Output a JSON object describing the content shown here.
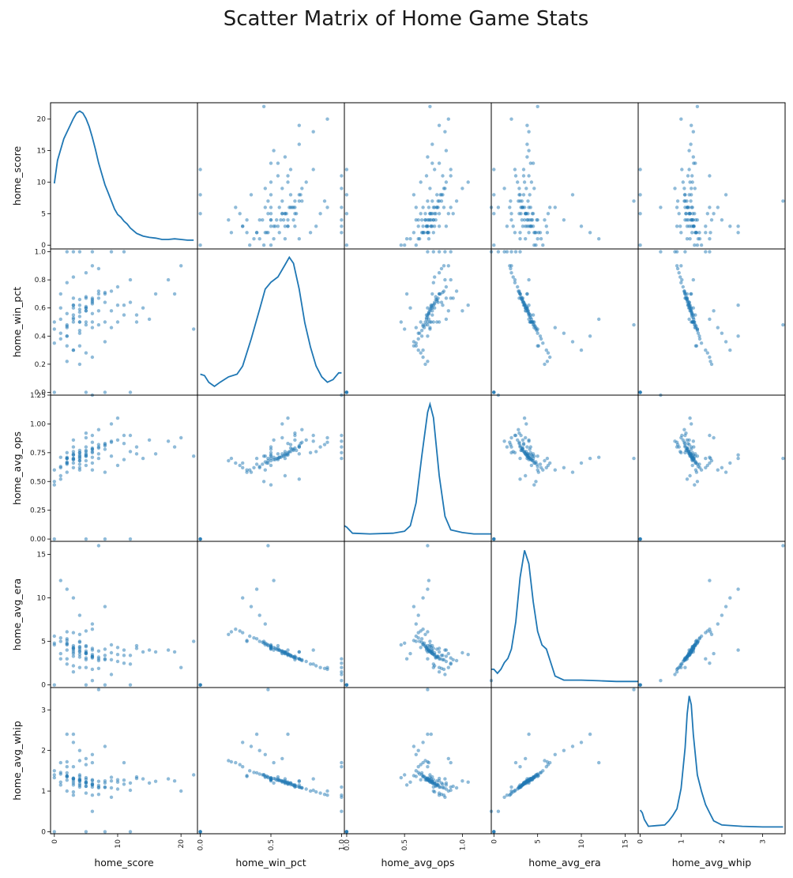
{
  "chart_data": {
    "type": "scatter",
    "title": "Scatter Matrix of Home Game Stats",
    "variables": [
      "home_score",
      "home_win_pct",
      "home_avg_ops",
      "home_avg_era",
      "home_avg_whip"
    ],
    "diagonal": "kde",
    "color": "#1f77b4",
    "point_alpha": 0.5,
    "grid": false,
    "axes": {
      "home_score": {
        "range": [
          -0.6,
          22.6
        ],
        "ticks": [
          0,
          5,
          10,
          15,
          20
        ],
        "x_ticks": [
          0,
          10,
          20
        ],
        "x_tick_labels": [
          "0",
          "10",
          "20"
        ]
      },
      "home_win_pct": {
        "range": [
          -0.02,
          1.02
        ],
        "ticks": [
          0.0,
          0.2,
          0.4,
          0.6,
          0.8,
          1.0
        ],
        "x_ticks": [
          0.0,
          0.5,
          1.0
        ],
        "x_tick_labels": [
          "0.0",
          "0.5",
          "1.0"
        ],
        "y_tick_labels": [
          "0.0",
          "0.2",
          "0.4",
          "0.6",
          "0.8",
          "1.0"
        ]
      },
      "home_avg_ops": {
        "range": [
          -0.02,
          1.25
        ],
        "ticks": [
          0.0,
          0.25,
          0.5,
          0.75,
          1.0,
          1.25
        ],
        "x_ticks": [
          0.0,
          0.5,
          1.0
        ],
        "x_tick_labels": [
          "0.0",
          "0.5",
          "1.0"
        ],
        "y_tick_labels": [
          "0.00",
          "0.25",
          "0.50",
          "0.75",
          "1.00",
          "1.25"
        ]
      },
      "home_avg_era": {
        "range": [
          -0.3,
          16.5
        ],
        "ticks": [
          0,
          5,
          10,
          15
        ],
        "x_ticks": [
          0,
          5,
          10,
          15
        ],
        "x_tick_labels": [
          "0",
          "5",
          "10",
          "15"
        ]
      },
      "home_avg_whip": {
        "range": [
          -0.05,
          3.55
        ],
        "ticks": [
          0,
          1,
          2,
          3
        ],
        "x_ticks": [
          0,
          1,
          2,
          3
        ],
        "x_tick_labels": [
          "0",
          "1",
          "2",
          "3"
        ]
      }
    },
    "kde_curves": {
      "home_score": [
        [
          0,
          0.45
        ],
        [
          0.5,
          0.62
        ],
        [
          1,
          0.7
        ],
        [
          1.5,
          0.78
        ],
        [
          2,
          0.83
        ],
        [
          2.5,
          0.88
        ],
        [
          3,
          0.93
        ],
        [
          3.5,
          0.97
        ],
        [
          4,
          0.985
        ],
        [
          4.5,
          0.97
        ],
        [
          5,
          0.93
        ],
        [
          5.5,
          0.87
        ],
        [
          6,
          0.79
        ],
        [
          6.5,
          0.7
        ],
        [
          7,
          0.6
        ],
        [
          7.5,
          0.52
        ],
        [
          8,
          0.44
        ],
        [
          8.5,
          0.38
        ],
        [
          9,
          0.32
        ],
        [
          9.5,
          0.26
        ],
        [
          10,
          0.22
        ],
        [
          10.5,
          0.2
        ],
        [
          11,
          0.17
        ],
        [
          11.5,
          0.15
        ],
        [
          12,
          0.12
        ],
        [
          12.5,
          0.1
        ],
        [
          13,
          0.08
        ],
        [
          13.5,
          0.07
        ],
        [
          14,
          0.06
        ],
        [
          15,
          0.05
        ],
        [
          16,
          0.045
        ],
        [
          17,
          0.035
        ],
        [
          18,
          0.035
        ],
        [
          19,
          0.04
        ],
        [
          20,
          0.035
        ],
        [
          21,
          0.03
        ],
        [
          22,
          0.03
        ]
      ],
      "home_win_pct": [
        [
          0,
          0.12
        ],
        [
          0.03,
          0.11
        ],
        [
          0.06,
          0.06
        ],
        [
          0.1,
          0.03
        ],
        [
          0.14,
          0.06
        ],
        [
          0.2,
          0.1
        ],
        [
          0.26,
          0.12
        ],
        [
          0.3,
          0.18
        ],
        [
          0.36,
          0.38
        ],
        [
          0.42,
          0.6
        ],
        [
          0.46,
          0.75
        ],
        [
          0.5,
          0.8
        ],
        [
          0.55,
          0.84
        ],
        [
          0.6,
          0.93
        ],
        [
          0.63,
          0.985
        ],
        [
          0.66,
          0.94
        ],
        [
          0.7,
          0.75
        ],
        [
          0.74,
          0.5
        ],
        [
          0.78,
          0.32
        ],
        [
          0.82,
          0.18
        ],
        [
          0.86,
          0.1
        ],
        [
          0.9,
          0.06
        ],
        [
          0.94,
          0.08
        ],
        [
          0.98,
          0.13
        ],
        [
          1.0,
          0.13
        ]
      ],
      "home_avg_ops": [
        [
          -0.02,
          0.08
        ],
        [
          0.0,
          0.07
        ],
        [
          0.05,
          0.025
        ],
        [
          0.2,
          0.02
        ],
        [
          0.4,
          0.025
        ],
        [
          0.5,
          0.04
        ],
        [
          0.55,
          0.08
        ],
        [
          0.6,
          0.25
        ],
        [
          0.65,
          0.6
        ],
        [
          0.7,
          0.92
        ],
        [
          0.72,
          0.98
        ],
        [
          0.75,
          0.88
        ],
        [
          0.8,
          0.45
        ],
        [
          0.85,
          0.15
        ],
        [
          0.9,
          0.05
        ],
        [
          1.0,
          0.03
        ],
        [
          1.1,
          0.02
        ],
        [
          1.25,
          0.02
        ]
      ],
      "home_avg_era": [
        [
          -0.3,
          0.1
        ],
        [
          0,
          0.1
        ],
        [
          0.4,
          0.07
        ],
        [
          0.8,
          0.1
        ],
        [
          1.2,
          0.15
        ],
        [
          1.6,
          0.18
        ],
        [
          2,
          0.25
        ],
        [
          2.5,
          0.45
        ],
        [
          3,
          0.78
        ],
        [
          3.5,
          0.98
        ],
        [
          4,
          0.88
        ],
        [
          4.5,
          0.6
        ],
        [
          5,
          0.38
        ],
        [
          5.5,
          0.28
        ],
        [
          6,
          0.25
        ],
        [
          6.5,
          0.15
        ],
        [
          7,
          0.05
        ],
        [
          8,
          0.02
        ],
        [
          10,
          0.02
        ],
        [
          12,
          0.015
        ],
        [
          14,
          0.01
        ],
        [
          16.5,
          0.01
        ]
      ],
      "home_avg_whip": [
        [
          0,
          0.14
        ],
        [
          0.05,
          0.12
        ],
        [
          0.1,
          0.07
        ],
        [
          0.2,
          0.02
        ],
        [
          0.4,
          0.025
        ],
        [
          0.6,
          0.03
        ],
        [
          0.7,
          0.06
        ],
        [
          0.8,
          0.1
        ],
        [
          0.9,
          0.15
        ],
        [
          1.0,
          0.3
        ],
        [
          1.1,
          0.6
        ],
        [
          1.15,
          0.85
        ],
        [
          1.2,
          0.985
        ],
        [
          1.25,
          0.92
        ],
        [
          1.3,
          0.7
        ],
        [
          1.4,
          0.4
        ],
        [
          1.5,
          0.28
        ],
        [
          1.6,
          0.18
        ],
        [
          1.7,
          0.12
        ],
        [
          1.8,
          0.06
        ],
        [
          2.0,
          0.03
        ],
        [
          2.5,
          0.02
        ],
        [
          3.0,
          0.015
        ],
        [
          3.5,
          0.015
        ]
      ]
    },
    "observations": [
      [
        5,
        0.58,
        0.72,
        3.9,
        1.22
      ],
      [
        3,
        0.55,
        0.7,
        4.2,
        1.3
      ],
      [
        4,
        0.62,
        0.75,
        3.5,
        1.18
      ],
      [
        6,
        0.66,
        0.78,
        3.2,
        1.15
      ],
      [
        2,
        0.48,
        0.66,
        4.6,
        1.35
      ],
      [
        7,
        0.7,
        0.8,
        3.0,
        1.1
      ],
      [
        1,
        0.42,
        0.63,
        5.0,
        1.42
      ],
      [
        8,
        0.64,
        0.82,
        3.4,
        1.2
      ],
      [
        4,
        0.5,
        0.68,
        4.4,
        1.28
      ],
      [
        3,
        0.6,
        0.73,
        3.8,
        1.25
      ],
      [
        5,
        0.68,
        0.77,
        3.1,
        1.12
      ],
      [
        2,
        0.4,
        0.65,
        5.3,
        1.45
      ],
      [
        9,
        0.72,
        0.84,
        2.9,
        1.08
      ],
      [
        6,
        0.56,
        0.71,
        4.0,
        1.26
      ],
      [
        0,
        0.35,
        0.6,
        5.6,
        1.5
      ],
      [
        4,
        0.54,
        0.7,
        4.1,
        1.27
      ],
      [
        3,
        0.62,
        0.74,
        3.6,
        1.2
      ],
      [
        5,
        0.6,
        0.76,
        3.7,
        1.19
      ],
      [
        10,
        0.75,
        0.86,
        2.7,
        1.05
      ],
      [
        2,
        0.46,
        0.67,
        4.8,
        1.36
      ],
      [
        6,
        0.64,
        0.79,
        3.3,
        1.16
      ],
      [
        1,
        0.38,
        0.62,
        5.4,
        1.46
      ],
      [
        7,
        0.58,
        0.74,
        3.9,
        1.24
      ],
      [
        3,
        0.52,
        0.69,
        4.3,
        1.31
      ],
      [
        4,
        0.66,
        0.77,
        3.2,
        1.14
      ],
      [
        5,
        0.48,
        0.68,
        4.5,
        1.33
      ],
      [
        8,
        0.7,
        0.81,
        3.0,
        1.1
      ],
      [
        2,
        0.56,
        0.71,
        4.0,
        1.27
      ],
      [
        11,
        0.62,
        0.83,
        3.4,
        1.17
      ],
      [
        4,
        0.44,
        0.65,
        4.9,
        1.4
      ],
      [
        3,
        0.3,
        0.62,
        6.0,
        1.6
      ],
      [
        5,
        0.28,
        0.64,
        6.2,
        1.65
      ],
      [
        6,
        0.25,
        0.66,
        6.4,
        1.7
      ],
      [
        2,
        0.22,
        0.7,
        6.1,
        1.72
      ],
      [
        4,
        0.2,
        0.68,
        5.8,
        1.75
      ],
      [
        3,
        0.82,
        0.76,
        2.2,
        0.98
      ],
      [
        5,
        0.85,
        0.8,
        2.0,
        0.95
      ],
      [
        7,
        0.88,
        0.82,
        1.9,
        0.92
      ],
      [
        2,
        0.78,
        0.75,
        2.4,
        1.0
      ],
      [
        6,
        0.9,
        0.84,
        1.8,
        0.9
      ],
      [
        4,
        0.5,
        0.73,
        4.3,
        1.3
      ],
      [
        5,
        0.5,
        0.72,
        4.4,
        1.29
      ],
      [
        6,
        0.5,
        0.75,
        4.2,
        1.28
      ],
      [
        3,
        0.5,
        0.7,
        4.5,
        1.32
      ],
      [
        8,
        0.5,
        0.78,
        4.1,
        1.25
      ],
      [
        2,
        0.33,
        0.58,
        5.1,
        1.38
      ],
      [
        4,
        0.33,
        0.6,
        5.0,
        1.36
      ],
      [
        6,
        0.67,
        0.9,
        3.1,
        1.1
      ],
      [
        5,
        0.67,
        0.92,
        2.9,
        1.12
      ],
      [
        3,
        0.67,
        0.86,
        3.3,
        1.15
      ],
      [
        12,
        0.8,
        0.9,
        2.4,
        1.02
      ],
      [
        13,
        0.55,
        0.74,
        4.5,
        1.35
      ],
      [
        14,
        0.6,
        0.7,
        3.8,
        1.3
      ],
      [
        15,
        0.52,
        0.86,
        4.0,
        1.2
      ],
      [
        1,
        0.6,
        0.55,
        3.6,
        1.22
      ],
      [
        0,
        0.45,
        0.5,
        4.8,
        1.4
      ],
      [
        0,
        0.5,
        0.47,
        4.6,
        1.33
      ],
      [
        1,
        0.7,
        0.52,
        3.0,
        1.15
      ],
      [
        9,
        0.58,
        1.0,
        3.7,
        1.25
      ],
      [
        10,
        0.62,
        1.05,
        3.5,
        1.22
      ],
      [
        7,
        0.72,
        0.95,
        2.8,
        1.08
      ],
      [
        6,
        0.46,
        0.6,
        7.0,
        1.9
      ],
      [
        4,
        0.42,
        0.62,
        8.0,
        2.0
      ],
      [
        8,
        0.36,
        0.58,
        9.0,
        2.1
      ],
      [
        3,
        0.3,
        0.66,
        10.0,
        2.2
      ],
      [
        2,
        0.4,
        0.7,
        11.0,
        2.4
      ],
      [
        18,
        0.8,
        0.85,
        4.0,
        1.3
      ],
      [
        19,
        0.7,
        0.8,
        3.8,
        1.25
      ],
      [
        20,
        0.9,
        0.88,
        2.0,
        1.0
      ],
      [
        22,
        0.45,
        0.72,
        5.0,
        1.4
      ],
      [
        12,
        0.0,
        0.0,
        0.0,
        0.0
      ],
      [
        5,
        0.0,
        0.0,
        0.0,
        0.0
      ],
      [
        0,
        0.0,
        0.0,
        0.0,
        0.0
      ],
      [
        8,
        0.0,
        0.0,
        0.0,
        0.0
      ],
      [
        3,
        1.0,
        0.8,
        1.5,
        0.9
      ],
      [
        9,
        1.0,
        0.85,
        1.2,
        0.85
      ],
      [
        4,
        1.0,
        0.75,
        2.0,
        1.1
      ],
      [
        6,
        1.0,
        1.25,
        0.5,
        0.5
      ],
      [
        2,
        1.0,
        0.7,
        3.0,
        1.6
      ],
      [
        11,
        1.0,
        0.9,
        2.5,
        1.7
      ],
      [
        5,
        0.6,
        0.74,
        3.6,
        1.21
      ],
      [
        4,
        0.57,
        0.71,
        3.9,
        1.26
      ],
      [
        6,
        0.63,
        0.76,
        3.5,
        1.19
      ],
      [
        3,
        0.53,
        0.69,
        4.2,
        1.3
      ],
      [
        7,
        0.67,
        0.79,
        3.2,
        1.14
      ],
      [
        5,
        0.61,
        0.73,
        3.7,
        1.22
      ],
      [
        4,
        0.59,
        0.72,
        3.8,
        1.24
      ],
      [
        6,
        0.65,
        0.78,
        3.3,
        1.16
      ],
      [
        2,
        0.47,
        0.66,
        4.7,
        1.37
      ],
      [
        8,
        0.71,
        0.83,
        2.9,
        1.09
      ],
      [
        10,
        0.5,
        0.64,
        4.3,
        1.28
      ],
      [
        11,
        0.55,
        0.69,
        4.0,
        1.27
      ],
      [
        9,
        0.46,
        0.72,
        4.6,
        1.34
      ],
      [
        12,
        0.64,
        0.76,
        3.4,
        1.2
      ],
      [
        13,
        0.5,
        0.8,
        4.2,
        1.31
      ],
      [
        16,
        0.7,
        0.74,
        3.8,
        1.24
      ],
      [
        1,
        0.52,
        0.71,
        12.0,
        1.7
      ],
      [
        7,
        0.48,
        0.7,
        16.0,
        3.5
      ],
      [
        3,
        0.62,
        0.73,
        4.0,
        2.4
      ],
      [
        5,
        0.58,
        0.88,
        3.6,
        1.8
      ]
    ]
  }
}
